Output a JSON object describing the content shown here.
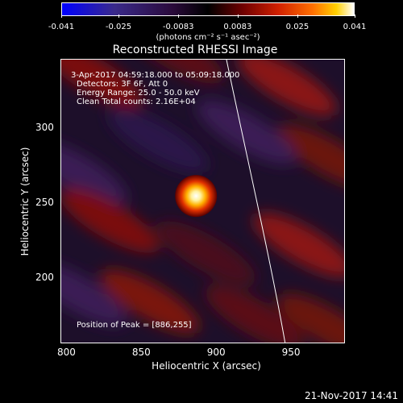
{
  "colorbar": {
    "tick_labels": [
      "-0.041",
      "-0.025",
      "-0.0083",
      "0.0083",
      "0.025",
      "0.041"
    ],
    "tick_values": [
      -0.041,
      -0.025,
      -0.0083,
      0.0083,
      0.025,
      0.041
    ],
    "units": "(photons cm⁻² s⁻¹ asec⁻²)"
  },
  "title": "Reconstructed RHESSI Image",
  "info": {
    "time_range": "3-Apr-2017 04:59:18.000 to 05:09:18.000",
    "detectors": "Detectors: 3F 6F, Att 0",
    "energy": "Energy Range: 25.0 - 50.0 keV",
    "clean": "Clean    Total counts: 2.16E+04",
    "peak": "Position of Peak = [886,255]"
  },
  "axes": {
    "xlabel": "Heliocentric X (arcsec)",
    "ylabel": "Heliocentric Y (arcsec)",
    "xticks": [
      "800",
      "850",
      "900",
      "950"
    ],
    "xtick_values": [
      800,
      850,
      900,
      950
    ],
    "yticks": [
      "200",
      "250",
      "300"
    ],
    "ytick_values": [
      200,
      250,
      300
    ],
    "xrange": [
      796,
      986
    ],
    "yrange": [
      156,
      346
    ]
  },
  "source": {
    "x": 886,
    "y": 255
  },
  "footer_date": "21-Nov-2017 14:41"
}
